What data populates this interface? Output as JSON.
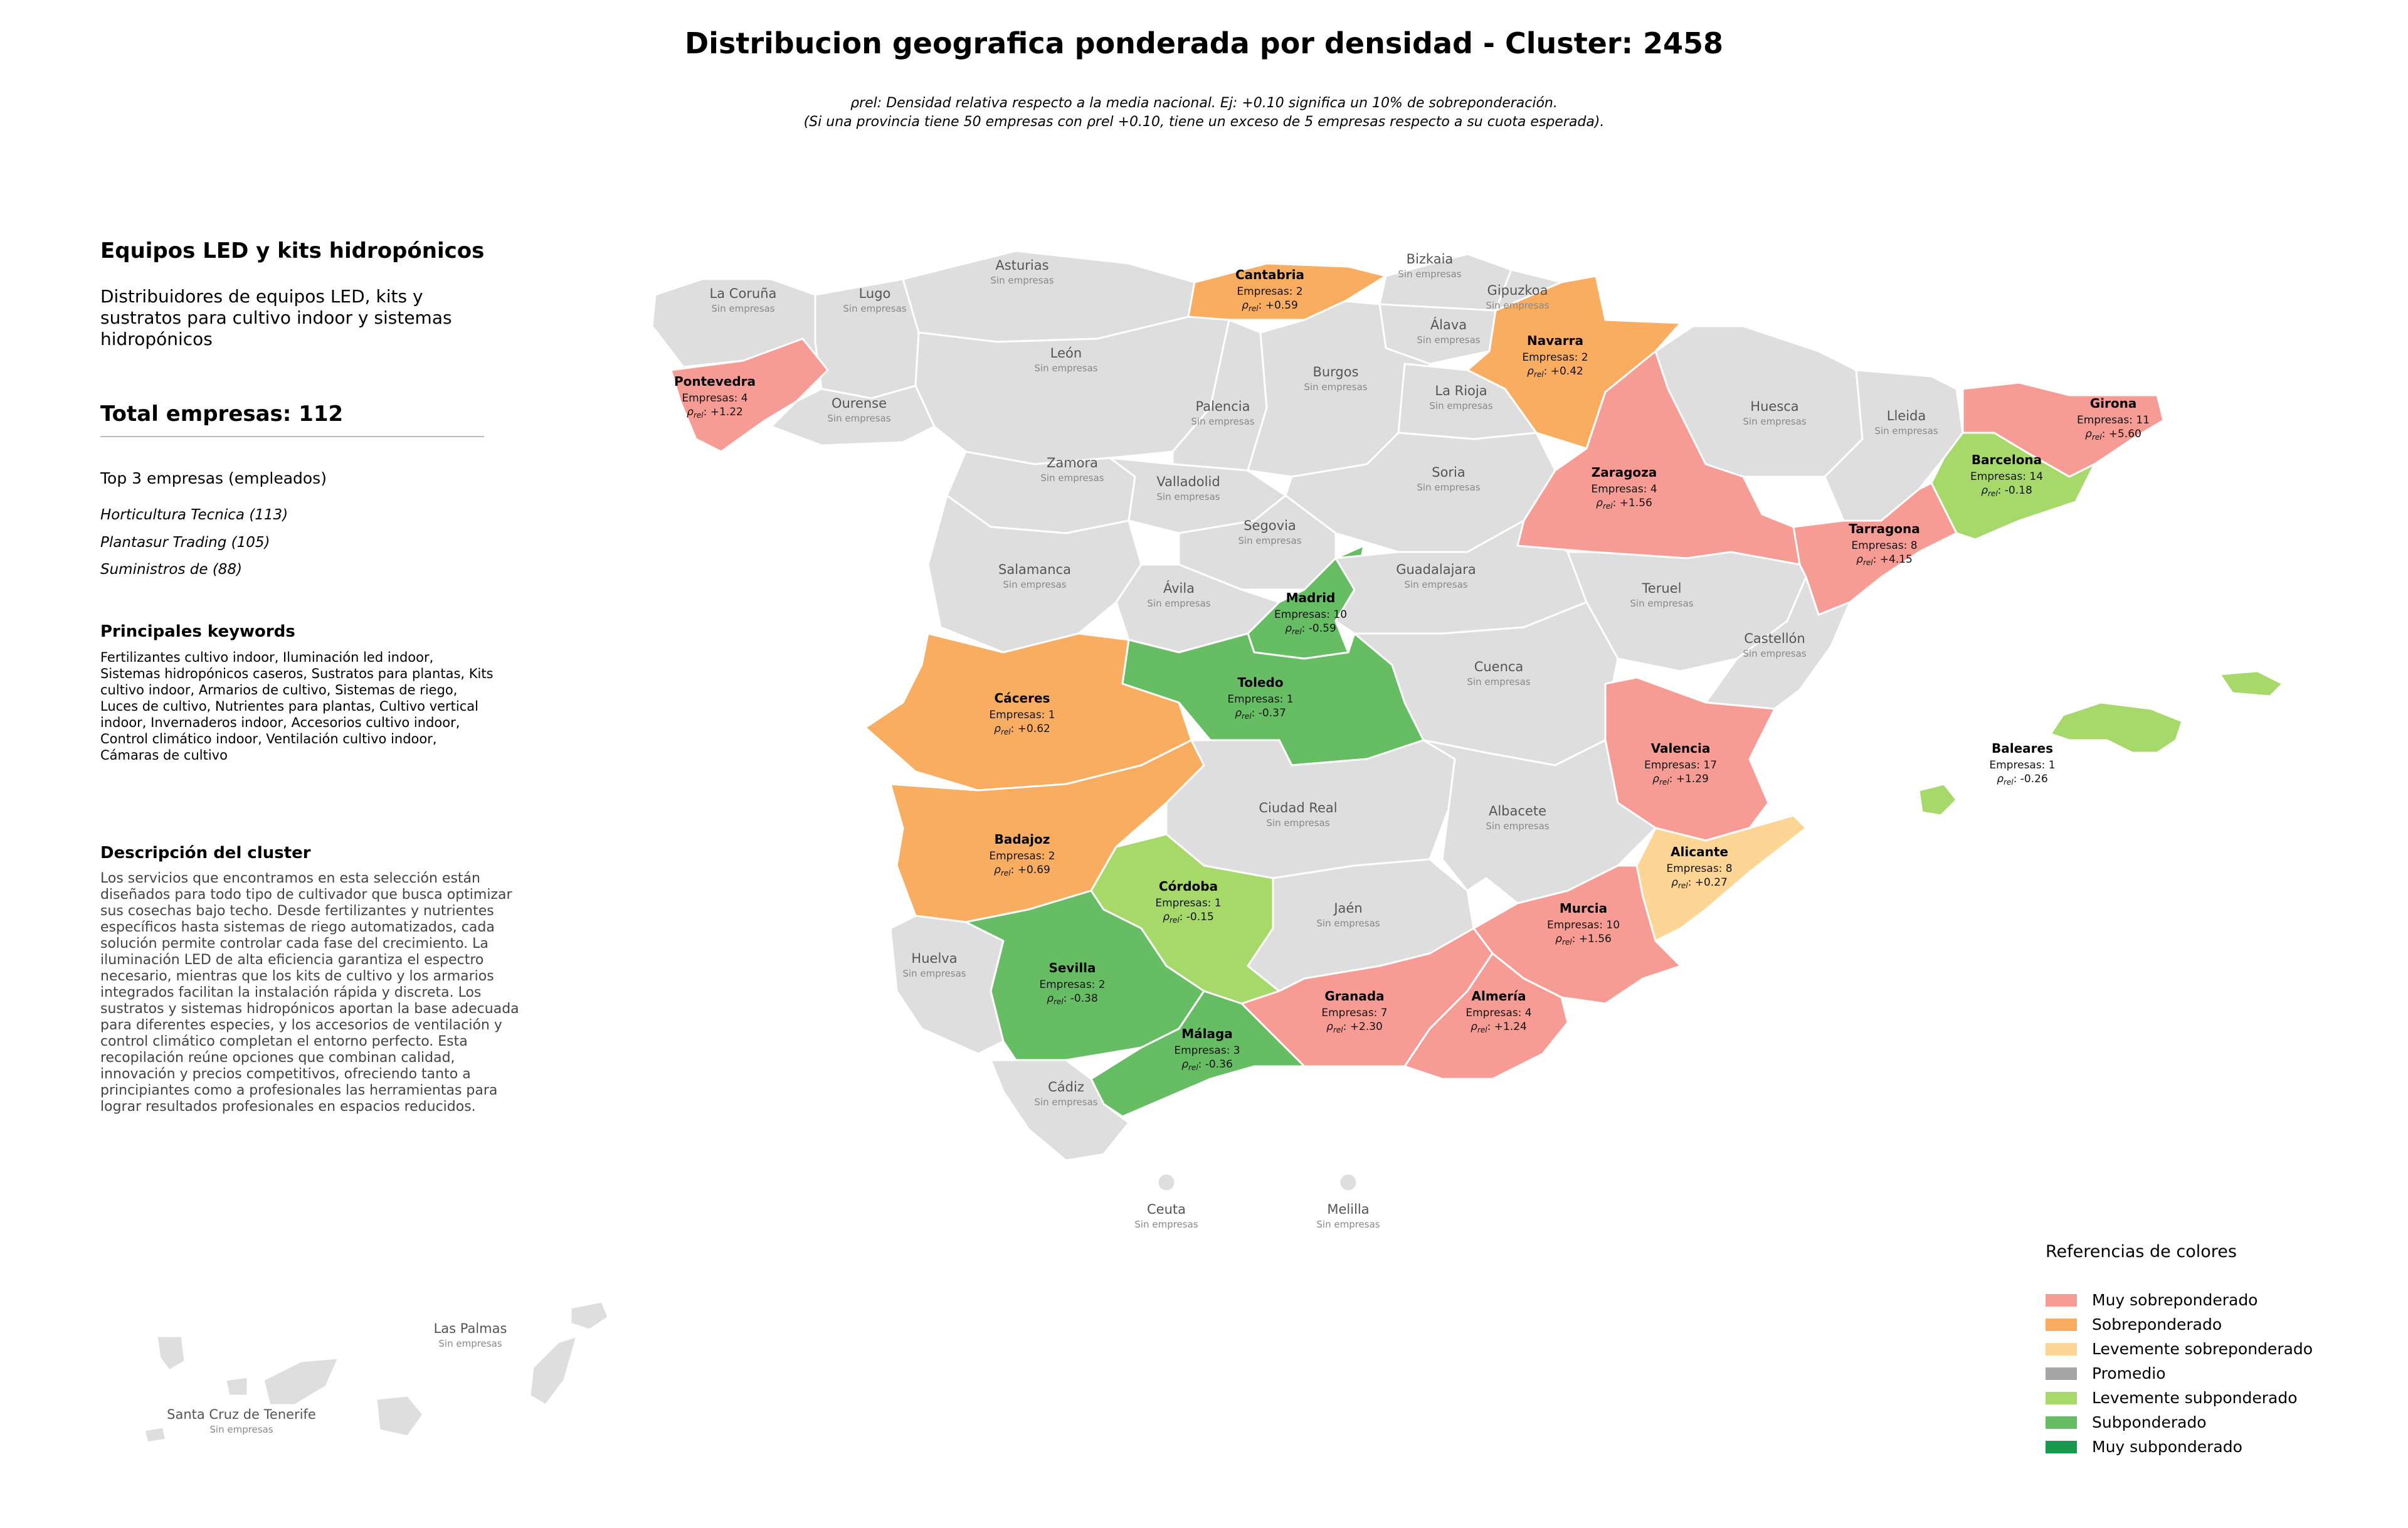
{
  "title": "Distribucion geografica ponderada por densidad - Cluster: 2458",
  "note_line1": "ρrel: Densidad relativa respecto a la media nacional. Ej: +0.10 significa un 10% de sobreponderación.",
  "note_line2": "(Si una provincia tiene 50 empresas con ρrel +0.10, tiene un exceso de 5 empresas respecto a su cuota esperada).",
  "cluster": {
    "name": "Equipos LED y kits hidropónicos",
    "subtitle_lines": [
      "Distribuidores de equipos LED, kits y",
      "sustratos para cultivo indoor y sistemas",
      "hidropónicos"
    ],
    "total": "Total empresas: 112",
    "top_header": "Top 3 empresas (empleados)",
    "top": [
      "Horticultura Tecnica (113)",
      "Plantasur Trading (105)",
      "Suministros de (88)"
    ],
    "keywords_header": "Principales keywords",
    "keywords_lines": [
      "Fertilizantes cultivo indoor, Iluminación led indoor,",
      "Sistemas hidropónicos caseros, Sustratos para plantas, Kits",
      "cultivo indoor, Armarios de cultivo, Sistemas de riego,",
      "Luces de cultivo, Nutrientes para plantas, Cultivo vertical",
      "indoor, Invernaderos indoor, Accesorios cultivo indoor,",
      "Control climático indoor, Ventilación cultivo indoor,",
      "Cámaras de cultivo"
    ],
    "description_header": "Descripción del cluster",
    "description_lines": [
      "Los servicios que encontramos en esta selección están",
      "diseñados para todo tipo de cultivador que busca optimizar",
      "sus cosechas bajo techo. Desde fertilizantes y nutrientes",
      "específicos hasta sistemas de riego automatizados, cada",
      "solución permite controlar cada fase del crecimiento. La",
      "iluminación LED de alta eficiencia garantiza el espectro",
      "necesario, mientras que los kits de cultivo y los armarios",
      "integrados facilitan la instalación rápida y discreta. Los",
      "sustratos y sistemas hidropónicos aportan la base adecuada",
      "para diferentes especies, y los accesorios de ventilación y",
      "control climático completan el entorno perfecto. Esta",
      "recopilación reúne opciones que combinan calidad,",
      "innovación y precios competitivos, ofreciendo tanto a",
      "principiantes como a profesionales las herramientas para",
      "lograr resultados profesionales en espacios reducidos."
    ]
  },
  "colors": {
    "muy_sobre": "#f79c94",
    "sobre": "#f9ad61",
    "lev_sobre": "#fdd696",
    "promedio": "#a6a6a6",
    "lev_sub": "#a6d96a",
    "sub": "#66bd63",
    "muy_sub": "#1a9850",
    "sin": "#dedede"
  },
  "legend": {
    "title": "Referencias de colores",
    "items": [
      {
        "label": "Muy sobreponderado",
        "color": "#f79c94"
      },
      {
        "label": "Sobreponderado",
        "color": "#f9ad61"
      },
      {
        "label": "Levemente sobreponderado",
        "color": "#fdd696"
      },
      {
        "label": "Promedio",
        "color": "#a6a6a6"
      },
      {
        "label": "Levemente subponderado",
        "color": "#a6d96a"
      },
      {
        "label": "Subponderado",
        "color": "#66bd63"
      },
      {
        "label": "Muy subponderado",
        "color": "#1a9850"
      }
    ]
  },
  "sin_empresas_label": "Sin empresas",
  "empresas_prefix": "Empresas: ",
  "rho_symbol": "ρ",
  "rho_sub": "rel",
  "provinces": [
    {
      "name": "Pontevedra",
      "empresas": 4,
      "rho": "+1.22",
      "category": "muy_sobre"
    },
    {
      "name": "Cantabria",
      "empresas": 2,
      "rho": "+0.59",
      "category": "sobre"
    },
    {
      "name": "Navarra",
      "empresas": 2,
      "rho": "+0.42",
      "category": "sobre"
    },
    {
      "name": "Girona",
      "empresas": 11,
      "rho": "+5.60",
      "category": "muy_sobre"
    },
    {
      "name": "Barcelona",
      "empresas": 14,
      "rho": "-0.18",
      "category": "lev_sub"
    },
    {
      "name": "Zaragoza",
      "empresas": 4,
      "rho": "+1.56",
      "category": "muy_sobre"
    },
    {
      "name": "Tarragona",
      "empresas": 8,
      "rho": "+4.15",
      "category": "muy_sobre"
    },
    {
      "name": "Madrid",
      "empresas": 10,
      "rho": "-0.59",
      "category": "sub"
    },
    {
      "name": "Toledo",
      "empresas": 1,
      "rho": "-0.37",
      "category": "sub"
    },
    {
      "name": "Cáceres",
      "empresas": 1,
      "rho": "+0.62",
      "category": "sobre"
    },
    {
      "name": "Valencia",
      "empresas": 17,
      "rho": "+1.29",
      "category": "muy_sobre"
    },
    {
      "name": "Baleares",
      "empresas": 1,
      "rho": "-0.26",
      "category": "lev_sub"
    },
    {
      "name": "Badajoz",
      "empresas": 2,
      "rho": "+0.69",
      "category": "sobre"
    },
    {
      "name": "Alicante",
      "empresas": 8,
      "rho": "+0.27",
      "category": "lev_sobre"
    },
    {
      "name": "Córdoba",
      "empresas": 1,
      "rho": "-0.15",
      "category": "lev_sub"
    },
    {
      "name": "Murcia",
      "empresas": 10,
      "rho": "+1.56",
      "category": "muy_sobre"
    },
    {
      "name": "Sevilla",
      "empresas": 2,
      "rho": "-0.38",
      "category": "sub"
    },
    {
      "name": "Granada",
      "empresas": 7,
      "rho": "+2.30",
      "category": "muy_sobre"
    },
    {
      "name": "Almería",
      "empresas": 4,
      "rho": "+1.24",
      "category": "muy_sobre"
    },
    {
      "name": "Málaga",
      "empresas": 3,
      "rho": "-0.36",
      "category": "sub"
    }
  ],
  "empty_provinces": [
    "La Coruña",
    "Lugo",
    "Asturias",
    "Bizkaia",
    "Gipuzkoa",
    "Álava",
    "León",
    "Ourense",
    "Burgos",
    "La Rioja",
    "Palencia",
    "Huesca",
    "Lleida",
    "Zamora",
    "Soria",
    "Valladolid",
    "Segovia",
    "Salamanca",
    "Guadalajara",
    "Ávila",
    "Teruel",
    "Cuenca",
    "Castellón",
    "Ciudad Real",
    "Albacete",
    "Jaén",
    "Huelva",
    "Cádiz",
    "Ceuta",
    "Melilla",
    "Las Palmas",
    "Santa Cruz de Tenerife"
  ]
}
